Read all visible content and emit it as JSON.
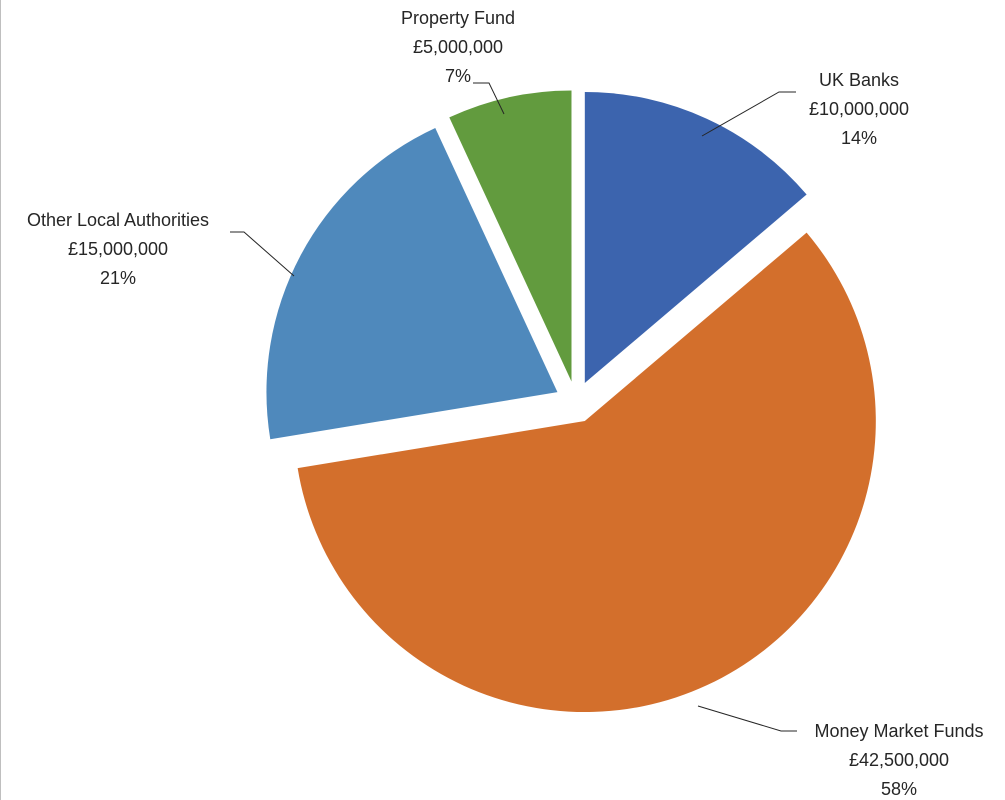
{
  "chart_data": {
    "type": "pie",
    "title": "",
    "legend": "none",
    "categories": [
      "UK Banks",
      "Money Market Funds",
      "Other Local Authorities",
      "Property Fund"
    ],
    "values": [
      10000000,
      42500000,
      15000000,
      5000000
    ],
    "value_labels": [
      "£10,000,000",
      "£42,500,000",
      "£15,000,000",
      "£5,000,000"
    ],
    "percent_labels": [
      "14%",
      "58%",
      "21%",
      "7%"
    ],
    "colors": [
      "#3c64ae",
      "#d36f2c",
      "#4f89bc",
      "#629b3e"
    ],
    "exploded": true
  }
}
